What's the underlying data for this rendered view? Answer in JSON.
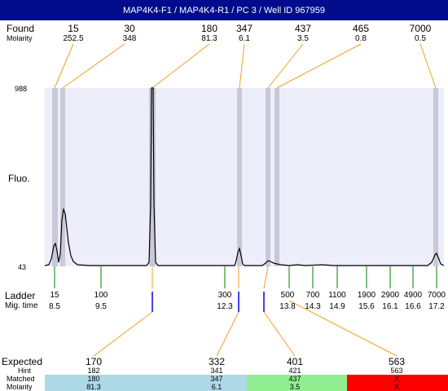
{
  "title": "MAP4K4-F1 / MAP4K4-R1 / PC 3 / Well ID 967959",
  "found": {
    "label": "Found",
    "molarity_label": "Molarity",
    "peaks": [
      {
        "size": "15",
        "molarity": "252.5"
      },
      {
        "size": "30",
        "molarity": "348"
      },
      {
        "size": "180",
        "molarity": "81.3"
      },
      {
        "size": "347",
        "molarity": "6.1"
      },
      {
        "size": "437",
        "molarity": "3.5"
      },
      {
        "size": "465",
        "molarity": "0.8"
      },
      {
        "size": "7000",
        "molarity": "0.5"
      }
    ]
  },
  "axis": {
    "y_label": "Fluo.",
    "y_max": "988",
    "y_min": "43"
  },
  "ladder": {
    "label": "Ladder",
    "mig_label": "Mig. time",
    "markers": [
      {
        "size": "15",
        "time": "8.5"
      },
      {
        "size": "100",
        "time": "9.5"
      },
      {
        "size": "300",
        "time": "12.3"
      },
      {
        "size": "500",
        "time": "13.8"
      },
      {
        "size": "700",
        "time": "14.3"
      },
      {
        "size": "1100",
        "time": "14.9"
      },
      {
        "size": "1900",
        "time": "15.6"
      },
      {
        "size": "2900",
        "time": "16.1"
      },
      {
        "size": "4900",
        "time": "16.6"
      },
      {
        "size": "7000",
        "time": "17.2"
      }
    ]
  },
  "expected": {
    "label": "Expected",
    "hint_label": "Hint",
    "matched_label": "Matched",
    "molarity_label": "Molarity",
    "items": [
      {
        "expected": "170",
        "hint": "182",
        "matched": "180",
        "molarity": "81.3",
        "status": "match",
        "color": "#add8e6"
      },
      {
        "expected": "332",
        "hint": "341",
        "matched": "347",
        "molarity": "6.1",
        "status": "match",
        "color": "#add8e6"
      },
      {
        "expected": "401",
        "hint": "421",
        "matched": "437",
        "molarity": "3.5",
        "status": "match",
        "color": "#90ee90"
      },
      {
        "expected": "563",
        "hint": "563",
        "matched": "X",
        "molarity": "X",
        "status": "missing",
        "color": "#ff0000"
      }
    ]
  },
  "colors": {
    "title_bar": "#000c8c",
    "plot_bg": "#eeeefa",
    "peak_band": "#c8c8d8",
    "connector": "#f0a020",
    "ladder_tick": "#008000",
    "migration_mark": "#0000ff",
    "trace": "#000000"
  }
}
